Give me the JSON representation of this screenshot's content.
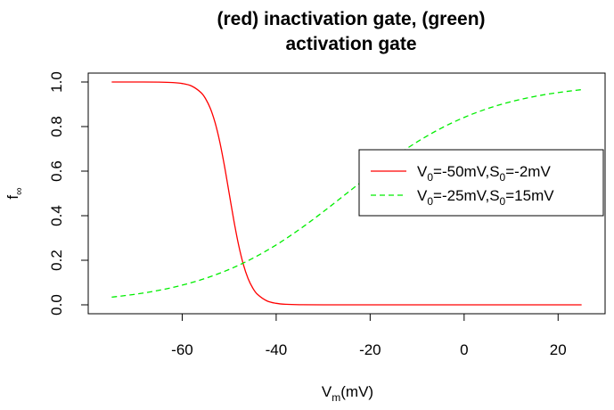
{
  "chart_data": {
    "type": "line",
    "title_line1": "(red) inactivation gate, (green)",
    "title_line2": "activation gate",
    "xlabel": {
      "main": "V",
      "sub": "m",
      "rest": "(mV)"
    },
    "ylabel": {
      "main": "f",
      "sub": "∞"
    },
    "xlim": [
      -80,
      30
    ],
    "ylim": [
      -0.04,
      1.04
    ],
    "x_ticks": [
      -60,
      -40,
      -20,
      0,
      20
    ],
    "x_tick_labels": [
      "-60",
      "-40",
      "-20",
      "0",
      "20"
    ],
    "y_ticks": [
      0,
      0.2,
      0.4,
      0.6,
      0.8,
      1.0
    ],
    "y_tick_labels": [
      "0.0",
      "0.2",
      "0.4",
      "0.6",
      "0.8",
      "1.0"
    ],
    "grid": false,
    "legend_position": "right",
    "series": [
      {
        "legend": [
          {
            "t": "V"
          },
          {
            "t": "0",
            "sub": true
          },
          {
            "t": "=-50mV,"
          },
          {
            "t": "S"
          },
          {
            "t": "0",
            "sub": true
          },
          {
            "t": "=-2mV"
          }
        ],
        "color": "#ff0000",
        "dash": "solid",
        "x": [
          -75,
          -70,
          -65,
          -62,
          -60,
          -58,
          -56,
          -55,
          -54,
          -53,
          -52,
          -51,
          -50,
          -49,
          -48,
          -47,
          -46,
          -45,
          -44,
          -42,
          -40,
          -38,
          -35,
          -30,
          -20,
          -10,
          0,
          10,
          20,
          25
        ],
        "y": [
          1.0,
          1.0,
          0.9994,
          0.9975,
          0.9933,
          0.982,
          0.9526,
          0.924,
          0.8808,
          0.8176,
          0.7311,
          0.6225,
          0.5,
          0.3775,
          0.2689,
          0.1824,
          0.1192,
          0.076,
          0.0474,
          0.018,
          0.0067,
          0.0025,
          0.0006,
          0.0,
          0.0,
          0.0,
          0.0,
          0.0,
          0.0,
          0.0
        ]
      },
      {
        "legend": [
          {
            "t": "V"
          },
          {
            "t": "0",
            "sub": true
          },
          {
            "t": "=-25mV,"
          },
          {
            "t": "S"
          },
          {
            "t": "0",
            "sub": true
          },
          {
            "t": "=15mV"
          }
        ],
        "color": "#00ee00",
        "dash": "dashed",
        "x": [
          -75,
          -70,
          -65,
          -60,
          -55,
          -50,
          -45,
          -40,
          -35,
          -30,
          -25,
          -20,
          -15,
          -10,
          -5,
          0,
          5,
          10,
          15,
          20,
          25
        ],
        "y": [
          0.0344,
          0.0474,
          0.0649,
          0.0884,
          0.1192,
          0.1589,
          0.2086,
          0.2689,
          0.3392,
          0.4174,
          0.5,
          0.5826,
          0.6608,
          0.7311,
          0.7914,
          0.8411,
          0.8808,
          0.9116,
          0.9351,
          0.9526,
          0.9656
        ]
      }
    ]
  }
}
